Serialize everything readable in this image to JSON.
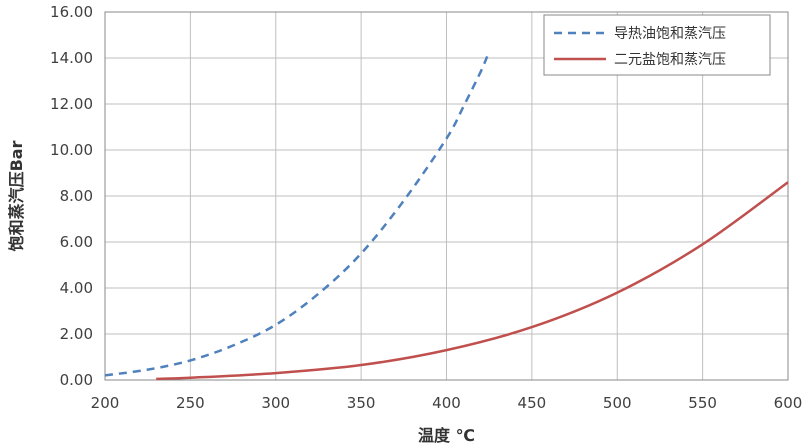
{
  "chart_data": {
    "type": "line",
    "title": "",
    "xlabel": "温度 ℃",
    "ylabel": "饱和蒸汽压Bar",
    "xlim": [
      200,
      600
    ],
    "ylim": [
      0,
      16
    ],
    "x_ticks": [
      "200",
      "250",
      "300",
      "350",
      "400",
      "450",
      "500",
      "550",
      "600"
    ],
    "y_ticks": [
      "0.00",
      "2.00",
      "4.00",
      "6.00",
      "8.00",
      "10.00",
      "12.00",
      "14.00",
      "16.00"
    ],
    "grid": true,
    "legend_position": "top-right",
    "series": [
      {
        "name": "导热油饱和蒸汽压",
        "style": "dashed",
        "color": "#4f81bd",
        "x": [
          200,
          225,
          250,
          275,
          300,
          325,
          350,
          375,
          400,
          410,
          420,
          424
        ],
        "y": [
          0.2,
          0.45,
          0.85,
          1.5,
          2.4,
          3.75,
          5.5,
          7.8,
          10.5,
          11.9,
          13.4,
          14.1
        ]
      },
      {
        "name": "二元盐饱和蒸汽压",
        "style": "solid",
        "color": "#c0504d",
        "x": [
          230,
          250,
          300,
          350,
          400,
          450,
          500,
          550,
          600
        ],
        "y": [
          0.05,
          0.1,
          0.3,
          0.65,
          1.3,
          2.3,
          3.8,
          5.9,
          8.6
        ]
      }
    ]
  }
}
